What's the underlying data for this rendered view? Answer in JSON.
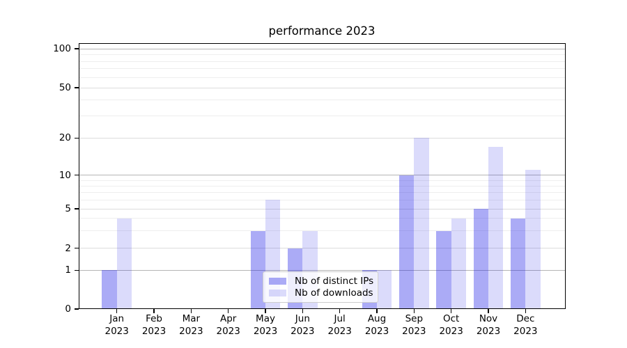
{
  "figure": {
    "background": "#ffffff"
  },
  "chart_data": {
    "type": "bar",
    "title": "performance 2023",
    "x_categories": [
      "Jan 2023",
      "Feb 2023",
      "Mar 2023",
      "Apr 2023",
      "May 2023",
      "Jun 2023",
      "Jul 2023",
      "Aug 2023",
      "Sep 2023",
      "Oct 2023",
      "Nov 2023",
      "Dec 2023"
    ],
    "x_tick_months": [
      "Jan",
      "Feb",
      "Mar",
      "Apr",
      "May",
      "Jun",
      "Jul",
      "Aug",
      "Sep",
      "Oct",
      "Nov",
      "Dec"
    ],
    "x_tick_year": "2023",
    "series": [
      {
        "name": "Nb of distinct IPs",
        "color": "rgba(13,13,230,0.35)",
        "values": [
          1,
          0,
          0,
          0,
          3,
          2,
          0,
          1,
          10,
          3,
          5,
          4
        ]
      },
      {
        "name": "Nb of downloads",
        "color": "rgba(13,13,230,0.15)",
        "values": [
          4,
          0,
          0,
          0,
          6,
          3,
          0,
          1,
          20,
          4,
          17,
          11
        ]
      }
    ],
    "y_axis": {
      "scale": "symlog",
      "major_ticks": [
        0,
        1,
        2,
        5,
        10,
        20,
        50,
        100
      ],
      "minor_gridlines": [
        3,
        4,
        6,
        7,
        8,
        9,
        30,
        40,
        60,
        70,
        80,
        90
      ],
      "range": [
        0,
        111
      ]
    },
    "legend": {
      "position": "lower-center",
      "entries": [
        "Nb of distinct IPs",
        "Nb of downloads"
      ]
    },
    "grid": true,
    "colors": {
      "bar_distinct_ips": "#aaaaf6",
      "bar_downloads": "#dbdbfb",
      "grid_decade": "#b5b5b5",
      "grid_major": "#dcdcdc",
      "grid_minor": "#eeeeee",
      "axis": "#000000",
      "text": "#000000"
    }
  }
}
